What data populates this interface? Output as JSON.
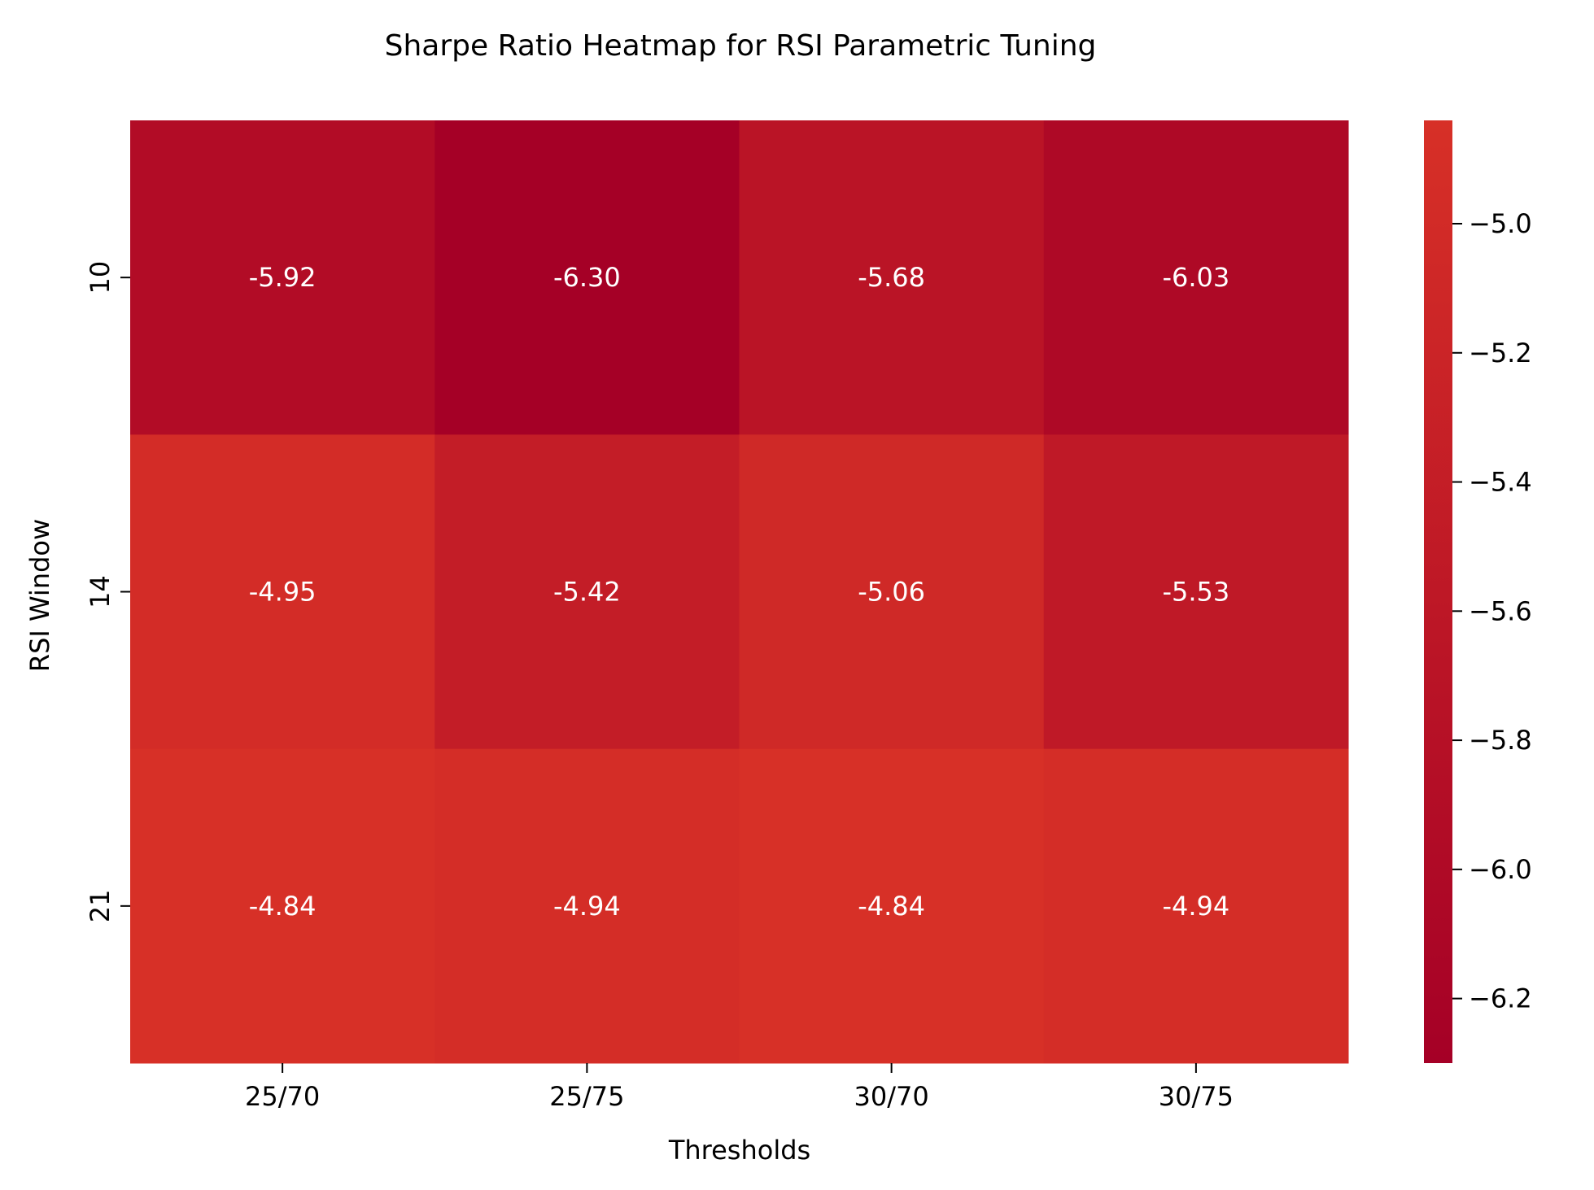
{
  "chart_data": {
    "type": "heatmap",
    "title": "Sharpe Ratio Heatmap for RSI Parametric Tuning",
    "xlabel": "Thresholds",
    "ylabel": "RSI Window",
    "x_categories": [
      "25/70",
      "25/75",
      "30/70",
      "30/75"
    ],
    "y_categories": [
      "10",
      "14",
      "21"
    ],
    "values": [
      [
        -5.92,
        -6.3,
        -5.68,
        -6.03
      ],
      [
        -4.95,
        -5.42,
        -5.06,
        -5.53
      ],
      [
        -4.84,
        -4.94,
        -4.84,
        -4.94
      ]
    ],
    "value_labels": [
      [
        "-5.92",
        "-6.30",
        "-5.68",
        "-6.03"
      ],
      [
        "-4.95",
        "-5.42",
        "-5.06",
        "-5.53"
      ],
      [
        "-4.84",
        "-4.94",
        "-4.84",
        "-4.94"
      ]
    ],
    "colorbar": {
      "min": -6.3,
      "max": -4.84,
      "ticks": [
        -5.0,
        -5.2,
        -5.4,
        -5.6,
        -5.8,
        -6.0,
        -6.2
      ],
      "tick_labels": [
        "−5.0",
        "−5.2",
        "−5.4",
        "−5.6",
        "−5.8",
        "−6.0",
        "−6.2"
      ],
      "colormap": "RdYlBu-red-range",
      "color_low": "#a50026",
      "color_high": "#d73027"
    },
    "annotation_color": "#ffffff"
  }
}
